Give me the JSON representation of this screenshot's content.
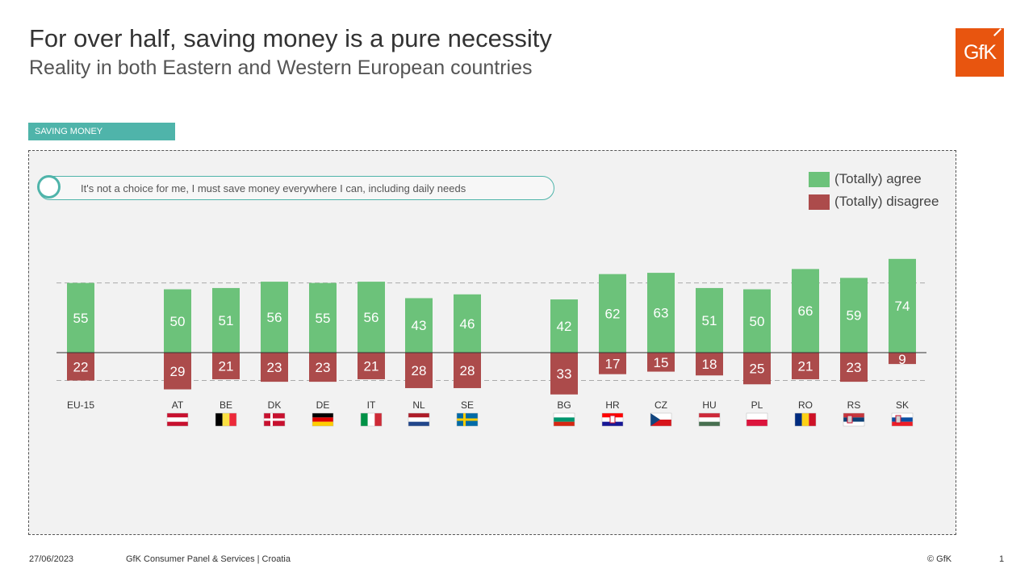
{
  "header": {
    "title": "For over half, saving money is a pure necessity",
    "subtitle": "Reality in both Eastern and Western European countries",
    "logo_text": "GfK"
  },
  "section_tag": "SAVING MONEY",
  "statement": "It's not a choice for me, I must save money everywhere I can, including daily needs",
  "legend": {
    "agree_label": "(Totally) agree",
    "disagree_label": "(Totally) disagree"
  },
  "colors": {
    "agree": "#6cc27a",
    "disagree": "#ac4b4b",
    "accent": "#4fb4aa",
    "logo": "#e8550f"
  },
  "chart_data": {
    "type": "bar",
    "categories": [
      "EU-15",
      "AT",
      "BE",
      "DK",
      "DE",
      "IT",
      "NL",
      "SE",
      "BG",
      "HR",
      "CZ",
      "HU",
      "PL",
      "RO",
      "RS",
      "SK"
    ],
    "series": [
      {
        "name": "(Totally) agree",
        "values": [
          55,
          50,
          51,
          56,
          55,
          56,
          43,
          46,
          42,
          62,
          63,
          51,
          50,
          66,
          59,
          74
        ]
      },
      {
        "name": "(Totally) disagree",
        "values": [
          22,
          29,
          21,
          23,
          23,
          21,
          28,
          28,
          33,
          17,
          15,
          18,
          25,
          21,
          23,
          9
        ]
      }
    ],
    "reference_lines": [
      55,
      -22
    ],
    "flags": [
      "none",
      "AT",
      "BE",
      "DK",
      "DE",
      "IT",
      "NL",
      "SE",
      "BG",
      "HR",
      "CZ",
      "HU",
      "PL",
      "RO",
      "RS",
      "SK"
    ]
  },
  "footer": {
    "date": "27/06/2023",
    "source": "GfK Consumer Panel & Services | Croatia",
    "copyright": "© GfK",
    "page": "1"
  }
}
